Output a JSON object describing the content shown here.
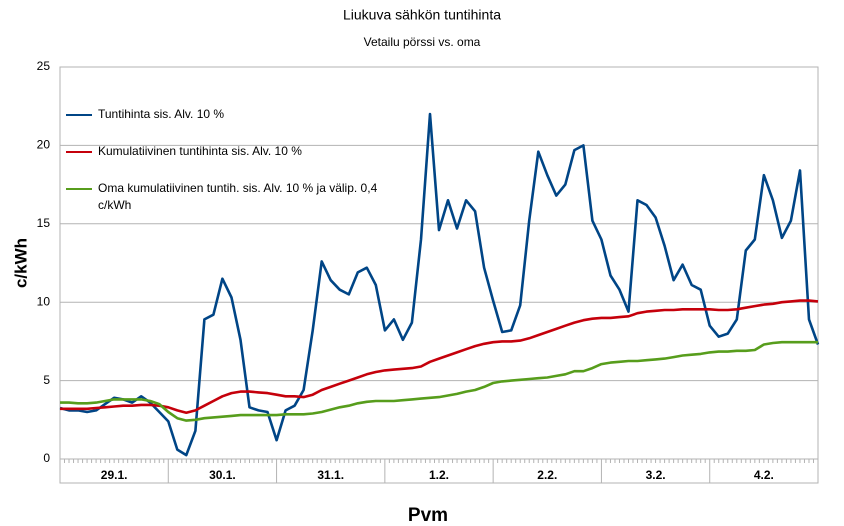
{
  "chart_data": {
    "type": "line",
    "title": "Liukuva sähkön tuntihinta",
    "subtitle": "Vetailu pörssi vs. oma",
    "ylabel": "c/kWh",
    "xlabel": "Pvm",
    "day_labels": [
      "29.1.",
      "30.1.",
      "31.1.",
      "1.2.",
      "2.2.",
      "3.2.",
      "4.2."
    ],
    "x": [
      0,
      2,
      4,
      6,
      8,
      10,
      12,
      14,
      16,
      18,
      20,
      22,
      24,
      26,
      28,
      30,
      32,
      34,
      36,
      38,
      40,
      42,
      44,
      46,
      48,
      50,
      52,
      54,
      56,
      58,
      60,
      62,
      64,
      66,
      68,
      70,
      72,
      74,
      76,
      78,
      80,
      82,
      84,
      86,
      88,
      90,
      92,
      94,
      96,
      98,
      100,
      102,
      104,
      106,
      108,
      110,
      112,
      114,
      116,
      118,
      120,
      122,
      124,
      126,
      128,
      130,
      132,
      134,
      136,
      138,
      140,
      142,
      144,
      146,
      148,
      150,
      152,
      154,
      156,
      158,
      160,
      162,
      164,
      166,
      168
    ],
    "xlim": [
      0,
      168
    ],
    "ylim": [
      0,
      25
    ],
    "yticks": [
      0,
      5,
      10,
      15,
      20,
      25
    ],
    "grid": true,
    "legend": "top-left",
    "series": [
      {
        "name": "Tuntihinta sis. Alv. 10 %",
        "color": "#004586",
        "values": [
          3.25,
          3.1,
          3.1,
          3.0,
          3.1,
          3.5,
          3.9,
          3.8,
          3.6,
          4.0,
          3.6,
          3.0,
          2.4,
          0.6,
          0.25,
          1.8,
          8.9,
          9.2,
          11.5,
          10.3,
          7.6,
          3.3,
          3.1,
          3.0,
          1.2,
          3.1,
          3.4,
          4.4,
          8.2,
          12.6,
          11.4,
          10.8,
          10.5,
          11.9,
          12.2,
          11.1,
          8.2,
          8.9,
          7.6,
          8.7,
          14.0,
          22,
          14.6,
          16.5,
          14.7,
          16.5,
          15.8,
          12.2,
          10.1,
          8.1,
          8.2,
          9.8,
          15.2,
          19.6,
          18.1,
          16.8,
          17.5,
          19.7,
          20.0,
          15.2,
          14.0,
          11.7,
          10.8,
          9.4,
          16.5,
          16.2,
          15.4,
          13.6,
          11.4,
          12.4,
          11.1,
          10.8,
          8.5,
          7.8,
          8.0,
          8.9,
          13.3,
          14.0,
          18.1,
          16.5,
          14.1,
          15.2,
          18.4,
          8.9,
          7.3
        ]
      },
      {
        "name": "Kumulatiivinen tuntihinta sis. Alv. 10 %",
        "color": "#c5000b",
        "values": [
          3.2,
          3.2,
          3.2,
          3.2,
          3.25,
          3.3,
          3.35,
          3.4,
          3.4,
          3.45,
          3.45,
          3.4,
          3.3,
          3.1,
          2.95,
          3.1,
          3.4,
          3.7,
          4.0,
          4.2,
          4.3,
          4.3,
          4.25,
          4.2,
          4.1,
          4.0,
          4.0,
          3.95,
          4.1,
          4.4,
          4.6,
          4.8,
          5.0,
          5.2,
          5.4,
          5.55,
          5.65,
          5.7,
          5.75,
          5.8,
          5.9,
          6.2,
          6.4,
          6.6,
          6.8,
          7.0,
          7.2,
          7.35,
          7.45,
          7.5,
          7.5,
          7.55,
          7.7,
          7.9,
          8.1,
          8.3,
          8.5,
          8.7,
          8.85,
          8.95,
          9.0,
          9.0,
          9.05,
          9.1,
          9.3,
          9.4,
          9.45,
          9.5,
          9.5,
          9.55,
          9.55,
          9.55,
          9.55,
          9.5,
          9.5,
          9.55,
          9.65,
          9.75,
          9.85,
          9.9,
          10.0,
          10.05,
          10.1,
          10.1,
          10.05
        ]
      },
      {
        "name": "Oma kumulatiivinen tuntih. sis. Alv. 10 % ja välip. 0,4 c/kWh",
        "color": "#579d1c",
        "values": [
          3.6,
          3.6,
          3.55,
          3.55,
          3.6,
          3.7,
          3.8,
          3.8,
          3.8,
          3.8,
          3.7,
          3.5,
          3.0,
          2.6,
          2.45,
          2.5,
          2.6,
          2.65,
          2.7,
          2.75,
          2.8,
          2.8,
          2.8,
          2.8,
          2.8,
          2.85,
          2.85,
          2.85,
          2.9,
          3.0,
          3.15,
          3.3,
          3.4,
          3.55,
          3.65,
          3.7,
          3.7,
          3.7,
          3.75,
          3.8,
          3.85,
          3.9,
          3.95,
          4.05,
          4.15,
          4.3,
          4.4,
          4.6,
          4.85,
          4.95,
          5.0,
          5.05,
          5.1,
          5.15,
          5.2,
          5.3,
          5.4,
          5.6,
          5.6,
          5.8,
          6.05,
          6.15,
          6.2,
          6.25,
          6.25,
          6.3,
          6.35,
          6.4,
          6.5,
          6.6,
          6.65,
          6.7,
          6.8,
          6.85,
          6.85,
          6.9,
          6.9,
          6.95,
          7.3,
          7.4,
          7.45,
          7.45,
          7.45,
          7.45,
          7.45
        ]
      }
    ]
  }
}
